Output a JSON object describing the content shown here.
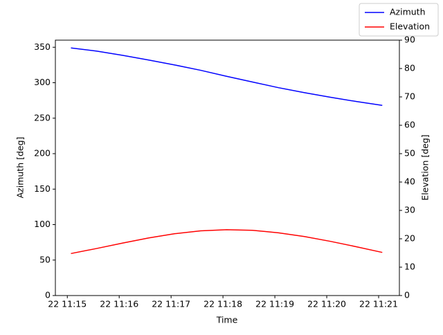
{
  "chart_data": {
    "type": "line",
    "x_label": "Time",
    "y_label": "Azimuth [deg]",
    "y2_label": "Elevation [deg]",
    "x": [
      0.07,
      0.57,
      1.07,
      1.57,
      2.07,
      2.57,
      3.07,
      3.57,
      4.07,
      4.57,
      5.07,
      5.57,
      6.07
    ],
    "series": [
      {
        "name": "Azimuth",
        "color": "#0000ff",
        "axis": "y",
        "values": [
          349,
          344.5,
          338.5,
          332,
          325,
          317.5,
          309,
          301,
          293,
          286,
          279.5,
          273.5,
          268
        ]
      },
      {
        "name": "Elevation",
        "color": "#ff0000",
        "axis": "y2",
        "values": [
          14.8,
          16.6,
          18.5,
          20.3,
          21.8,
          22.8,
          23.2,
          23.0,
          22.1,
          20.8,
          19.1,
          17.2,
          15.2
        ]
      }
    ],
    "xlim": [
      -0.23,
      6.4
    ],
    "xticks": [
      {
        "value": 0,
        "label": "22 11:15"
      },
      {
        "value": 1,
        "label": "22 11:16"
      },
      {
        "value": 2,
        "label": "22 11:17"
      },
      {
        "value": 3,
        "label": "22 11:18"
      },
      {
        "value": 4,
        "label": "22 11:19"
      },
      {
        "value": 5,
        "label": "22 11:20"
      },
      {
        "value": 6,
        "label": "22 11:21"
      }
    ],
    "ylim": [
      0,
      360
    ],
    "yticks": [
      0,
      50,
      100,
      150,
      200,
      250,
      300,
      350
    ],
    "y2lim": [
      0,
      90
    ],
    "y2ticks": [
      0,
      10,
      20,
      30,
      40,
      50,
      60,
      70,
      80,
      90
    ],
    "grid": false,
    "legend": "upper right"
  }
}
